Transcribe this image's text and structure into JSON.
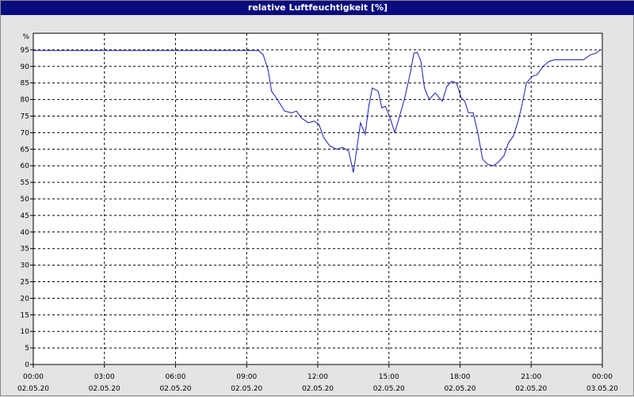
{
  "window": {
    "title": "relative Luftfeuchtigkeit [%]"
  },
  "chart_data": {
    "type": "line",
    "title": "relative Luftfeuchtigkeit [%]",
    "ylabel": "%",
    "ylim": [
      0,
      100
    ],
    "xlim": [
      0,
      24
    ],
    "grid": true,
    "line_color": "#1a1ab4",
    "y_ticks": [
      0,
      5,
      10,
      15,
      20,
      25,
      30,
      35,
      40,
      45,
      50,
      55,
      60,
      65,
      70,
      75,
      80,
      85,
      90,
      95
    ],
    "x_ticks": [
      {
        "value": 0,
        "time": "00:00",
        "date": "02.05.20"
      },
      {
        "value": 3,
        "time": "03:00",
        "date": "02.05.20"
      },
      {
        "value": 6,
        "time": "06:00",
        "date": "02.05.20"
      },
      {
        "value": 9,
        "time": "09:00",
        "date": "02.05.20"
      },
      {
        "value": 12,
        "time": "12:00",
        "date": "02.05.20"
      },
      {
        "value": 15,
        "time": "15:00",
        "date": "02.05.20"
      },
      {
        "value": 18,
        "time": "18:00",
        "date": "02.05.20"
      },
      {
        "value": 21,
        "time": "21:00",
        "date": "02.05.20"
      },
      {
        "value": 24,
        "time": "00:00",
        "date": "03.05.20"
      }
    ],
    "series": [
      {
        "x": [
          0,
          9.5,
          9.7,
          9.9,
          10.05,
          10.3,
          10.6,
          10.9,
          11.1,
          11.3,
          11.6,
          11.85,
          12.05,
          12.25,
          12.5,
          12.8,
          13.05,
          13.3,
          13.5,
          13.6,
          13.8,
          14.0,
          14.15,
          14.3,
          14.55,
          14.7,
          14.85,
          15.05,
          15.25,
          15.45,
          15.65,
          15.9,
          16.05,
          16.2,
          16.35,
          16.5,
          16.7,
          16.95,
          17.25,
          17.45,
          17.65,
          17.85,
          18.05,
          18.2,
          18.35,
          18.55,
          18.75,
          18.95,
          19.15,
          19.4,
          19.6,
          19.85,
          20.05,
          20.25,
          20.45,
          20.6,
          20.8,
          21.05,
          21.25,
          21.5,
          21.75,
          22.0,
          22.5,
          22.85,
          23.0,
          23.2,
          23.5,
          23.75,
          23.9
        ],
        "y": [
          94.8,
          94.8,
          93.5,
          89,
          82.5,
          80,
          76.5,
          76,
          76.5,
          74.5,
          73,
          73.5,
          72.5,
          68.5,
          66,
          65,
          65.5,
          64.5,
          58,
          63,
          73,
          69.5,
          78,
          83.5,
          82.5,
          77.5,
          78,
          74.5,
          70,
          75,
          80,
          88,
          94,
          94.2,
          91.5,
          83.5,
          80,
          82,
          79.5,
          84,
          85.5,
          85,
          80.5,
          79.5,
          76,
          76,
          70,
          62,
          60.5,
          60,
          61,
          63,
          67,
          69,
          73.5,
          78,
          85,
          87,
          87.5,
          90,
          91.5,
          92,
          92,
          92,
          92,
          92,
          93.5,
          94,
          95
        ]
      }
    ]
  }
}
